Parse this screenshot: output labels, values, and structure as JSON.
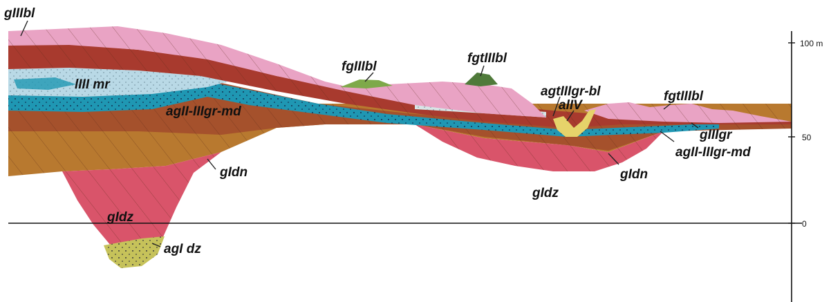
{
  "scale": {
    "ticks": [
      {
        "value": 100,
        "label": "100 m"
      },
      {
        "value": 50,
        "label": "50"
      },
      {
        "value": 0,
        "label": "0"
      }
    ]
  },
  "labels": {
    "gIIIbl": "gIIIbl",
    "IIImr": "lIII mr",
    "agII_IIIgr_md_left": "agII-IIIgr-md",
    "fgIIIbl": "fgIIIbl",
    "fgtIIIbl_center": "fgtIIIbl",
    "agtIIIgr_bl": "agtIIIgr-bl",
    "aIIV": "alIV",
    "fgtIIIbl_right": "fgtIIIbl",
    "gIIIgr": "gIIIgr",
    "agII_IIIgr_md_right": "agII-IIIgr-md",
    "gIdn_left": "gIdn",
    "gIdn_right": "gIdn",
    "gIdz_left": "gIdz",
    "gIdz_right": "gIdz",
    "agIdz": "agI dz"
  },
  "colors": {
    "pink": "#e9a3c4",
    "red_brown": "#a83a2e",
    "light_blue": "#b9d9e6",
    "teal": "#1f97b3",
    "brown": "#a5512c",
    "ochre": "#b8792f",
    "rose": "#d9546a",
    "yellow_green": "#c6c25a",
    "green": "#7ea94a",
    "yellow": "#e6d36a"
  }
}
